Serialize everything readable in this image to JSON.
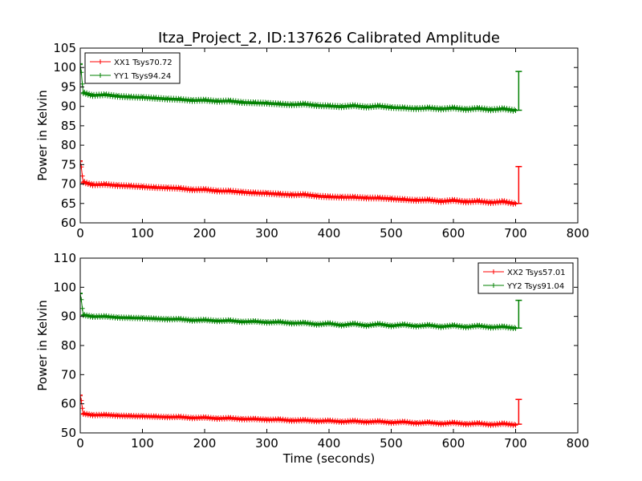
{
  "title": "Itza_Project_2, ID:137626 Calibrated Amplitude",
  "chart_data": [
    {
      "type": "line",
      "xlabel": "",
      "ylabel": "Power in Kelvin",
      "xlim": [
        0,
        800
      ],
      "ylim": [
        60,
        105
      ],
      "xticks": [
        0,
        100,
        200,
        300,
        400,
        500,
        600,
        700,
        800
      ],
      "yticks": [
        60,
        65,
        70,
        75,
        80,
        85,
        90,
        95,
        100,
        105
      ],
      "grid": false,
      "legend_position": "top-left",
      "series": [
        {
          "name": "XX1 Tsys70.72",
          "color": "#ff0000",
          "marker": "+",
          "x": [
            0,
            5,
            20,
            40,
            60,
            80,
            100,
            120,
            140,
            160,
            180,
            200,
            220,
            240,
            260,
            280,
            300,
            320,
            340,
            360,
            380,
            400,
            420,
            440,
            460,
            480,
            500,
            520,
            540,
            560,
            580,
            600,
            620,
            640,
            660,
            680,
            700
          ],
          "y": [
            76,
            70.5,
            69.8,
            69.9,
            69.6,
            69.5,
            69.3,
            69.1,
            69,
            68.9,
            68.5,
            68.6,
            68.2,
            68.2,
            67.9,
            67.7,
            67.6,
            67.4,
            67.2,
            67.3,
            66.9,
            66.7,
            66.6,
            66.6,
            66.4,
            66.4,
            66.2,
            66,
            65.8,
            65.9,
            65.5,
            65.8,
            65.4,
            65.6,
            65.2,
            65.5,
            64.9
          ]
        },
        {
          "name": "YY1 Tsys94.24",
          "color": "#008000",
          "marker": "+",
          "x": [
            0,
            5,
            20,
            40,
            60,
            80,
            100,
            120,
            140,
            160,
            180,
            200,
            220,
            240,
            260,
            280,
            300,
            320,
            340,
            360,
            380,
            400,
            420,
            440,
            460,
            480,
            500,
            520,
            540,
            560,
            580,
            600,
            620,
            640,
            660,
            680,
            700
          ],
          "y": [
            101,
            93.5,
            92.8,
            93,
            92.6,
            92.4,
            92.3,
            92.1,
            91.9,
            91.8,
            91.5,
            91.6,
            91.3,
            91.4,
            91,
            90.9,
            90.8,
            90.6,
            90.4,
            90.6,
            90.2,
            90.1,
            89.9,
            90.2,
            89.8,
            90.1,
            89.7,
            89.6,
            89.4,
            89.6,
            89.3,
            89.6,
            89.2,
            89.5,
            89.1,
            89.4,
            88.9
          ]
        }
      ],
      "spikes": [
        {
          "series": "XX1 Tsys70.72",
          "x": 705,
          "low": 65,
          "high": 74.5
        },
        {
          "series": "YY1 Tsys94.24",
          "x": 705,
          "low": 89,
          "high": 99
        }
      ]
    },
    {
      "type": "line",
      "xlabel": "Time (seconds)",
      "ylabel": "Power in Kelvin",
      "xlim": [
        0,
        800
      ],
      "ylim": [
        50,
        110
      ],
      "xticks": [
        0,
        100,
        200,
        300,
        400,
        500,
        600,
        700,
        800
      ],
      "yticks": [
        50,
        60,
        70,
        80,
        90,
        100,
        110
      ],
      "grid": false,
      "legend_position": "top-right",
      "series": [
        {
          "name": "XX2 Tsys57.01",
          "color": "#ff0000",
          "marker": "+",
          "x": [
            0,
            5,
            20,
            40,
            60,
            80,
            100,
            120,
            140,
            160,
            180,
            200,
            220,
            240,
            260,
            280,
            300,
            320,
            340,
            360,
            380,
            400,
            420,
            440,
            460,
            480,
            500,
            520,
            540,
            560,
            580,
            600,
            620,
            640,
            660,
            680,
            700
          ],
          "y": [
            63,
            56.6,
            56.1,
            56.2,
            55.9,
            55.8,
            55.7,
            55.6,
            55.4,
            55.5,
            55.1,
            55.3,
            54.9,
            55.1,
            54.7,
            54.8,
            54.5,
            54.6,
            54.2,
            54.4,
            54,
            54.2,
            53.8,
            54.1,
            53.7,
            54,
            53.5,
            53.8,
            53.3,
            53.6,
            53.1,
            53.5,
            53,
            53.3,
            52.8,
            53.2,
            52.7
          ]
        },
        {
          "name": "YY2 Tsys91.04",
          "color": "#008000",
          "marker": "+",
          "x": [
            0,
            5,
            20,
            40,
            60,
            80,
            100,
            120,
            140,
            160,
            180,
            200,
            220,
            240,
            260,
            280,
            300,
            320,
            340,
            360,
            380,
            400,
            420,
            440,
            460,
            480,
            500,
            520,
            540,
            560,
            580,
            600,
            620,
            640,
            660,
            680,
            700
          ],
          "y": [
            98,
            90.5,
            89.9,
            90,
            89.6,
            89.5,
            89.4,
            89.2,
            89,
            89.1,
            88.6,
            88.8,
            88.4,
            88.6,
            88.1,
            88.3,
            87.9,
            88.1,
            87.6,
            87.8,
            87.2,
            87.6,
            86.9,
            87.5,
            86.8,
            87.4,
            86.7,
            87.2,
            86.6,
            87,
            86.4,
            86.9,
            86.3,
            86.8,
            86.2,
            86.5,
            85.9
          ]
        }
      ],
      "spikes": [
        {
          "series": "XX2 Tsys57.01",
          "x": 705,
          "low": 53,
          "high": 61.5
        },
        {
          "series": "YY2 Tsys91.04",
          "x": 705,
          "low": 86,
          "high": 95.5
        }
      ]
    }
  ]
}
